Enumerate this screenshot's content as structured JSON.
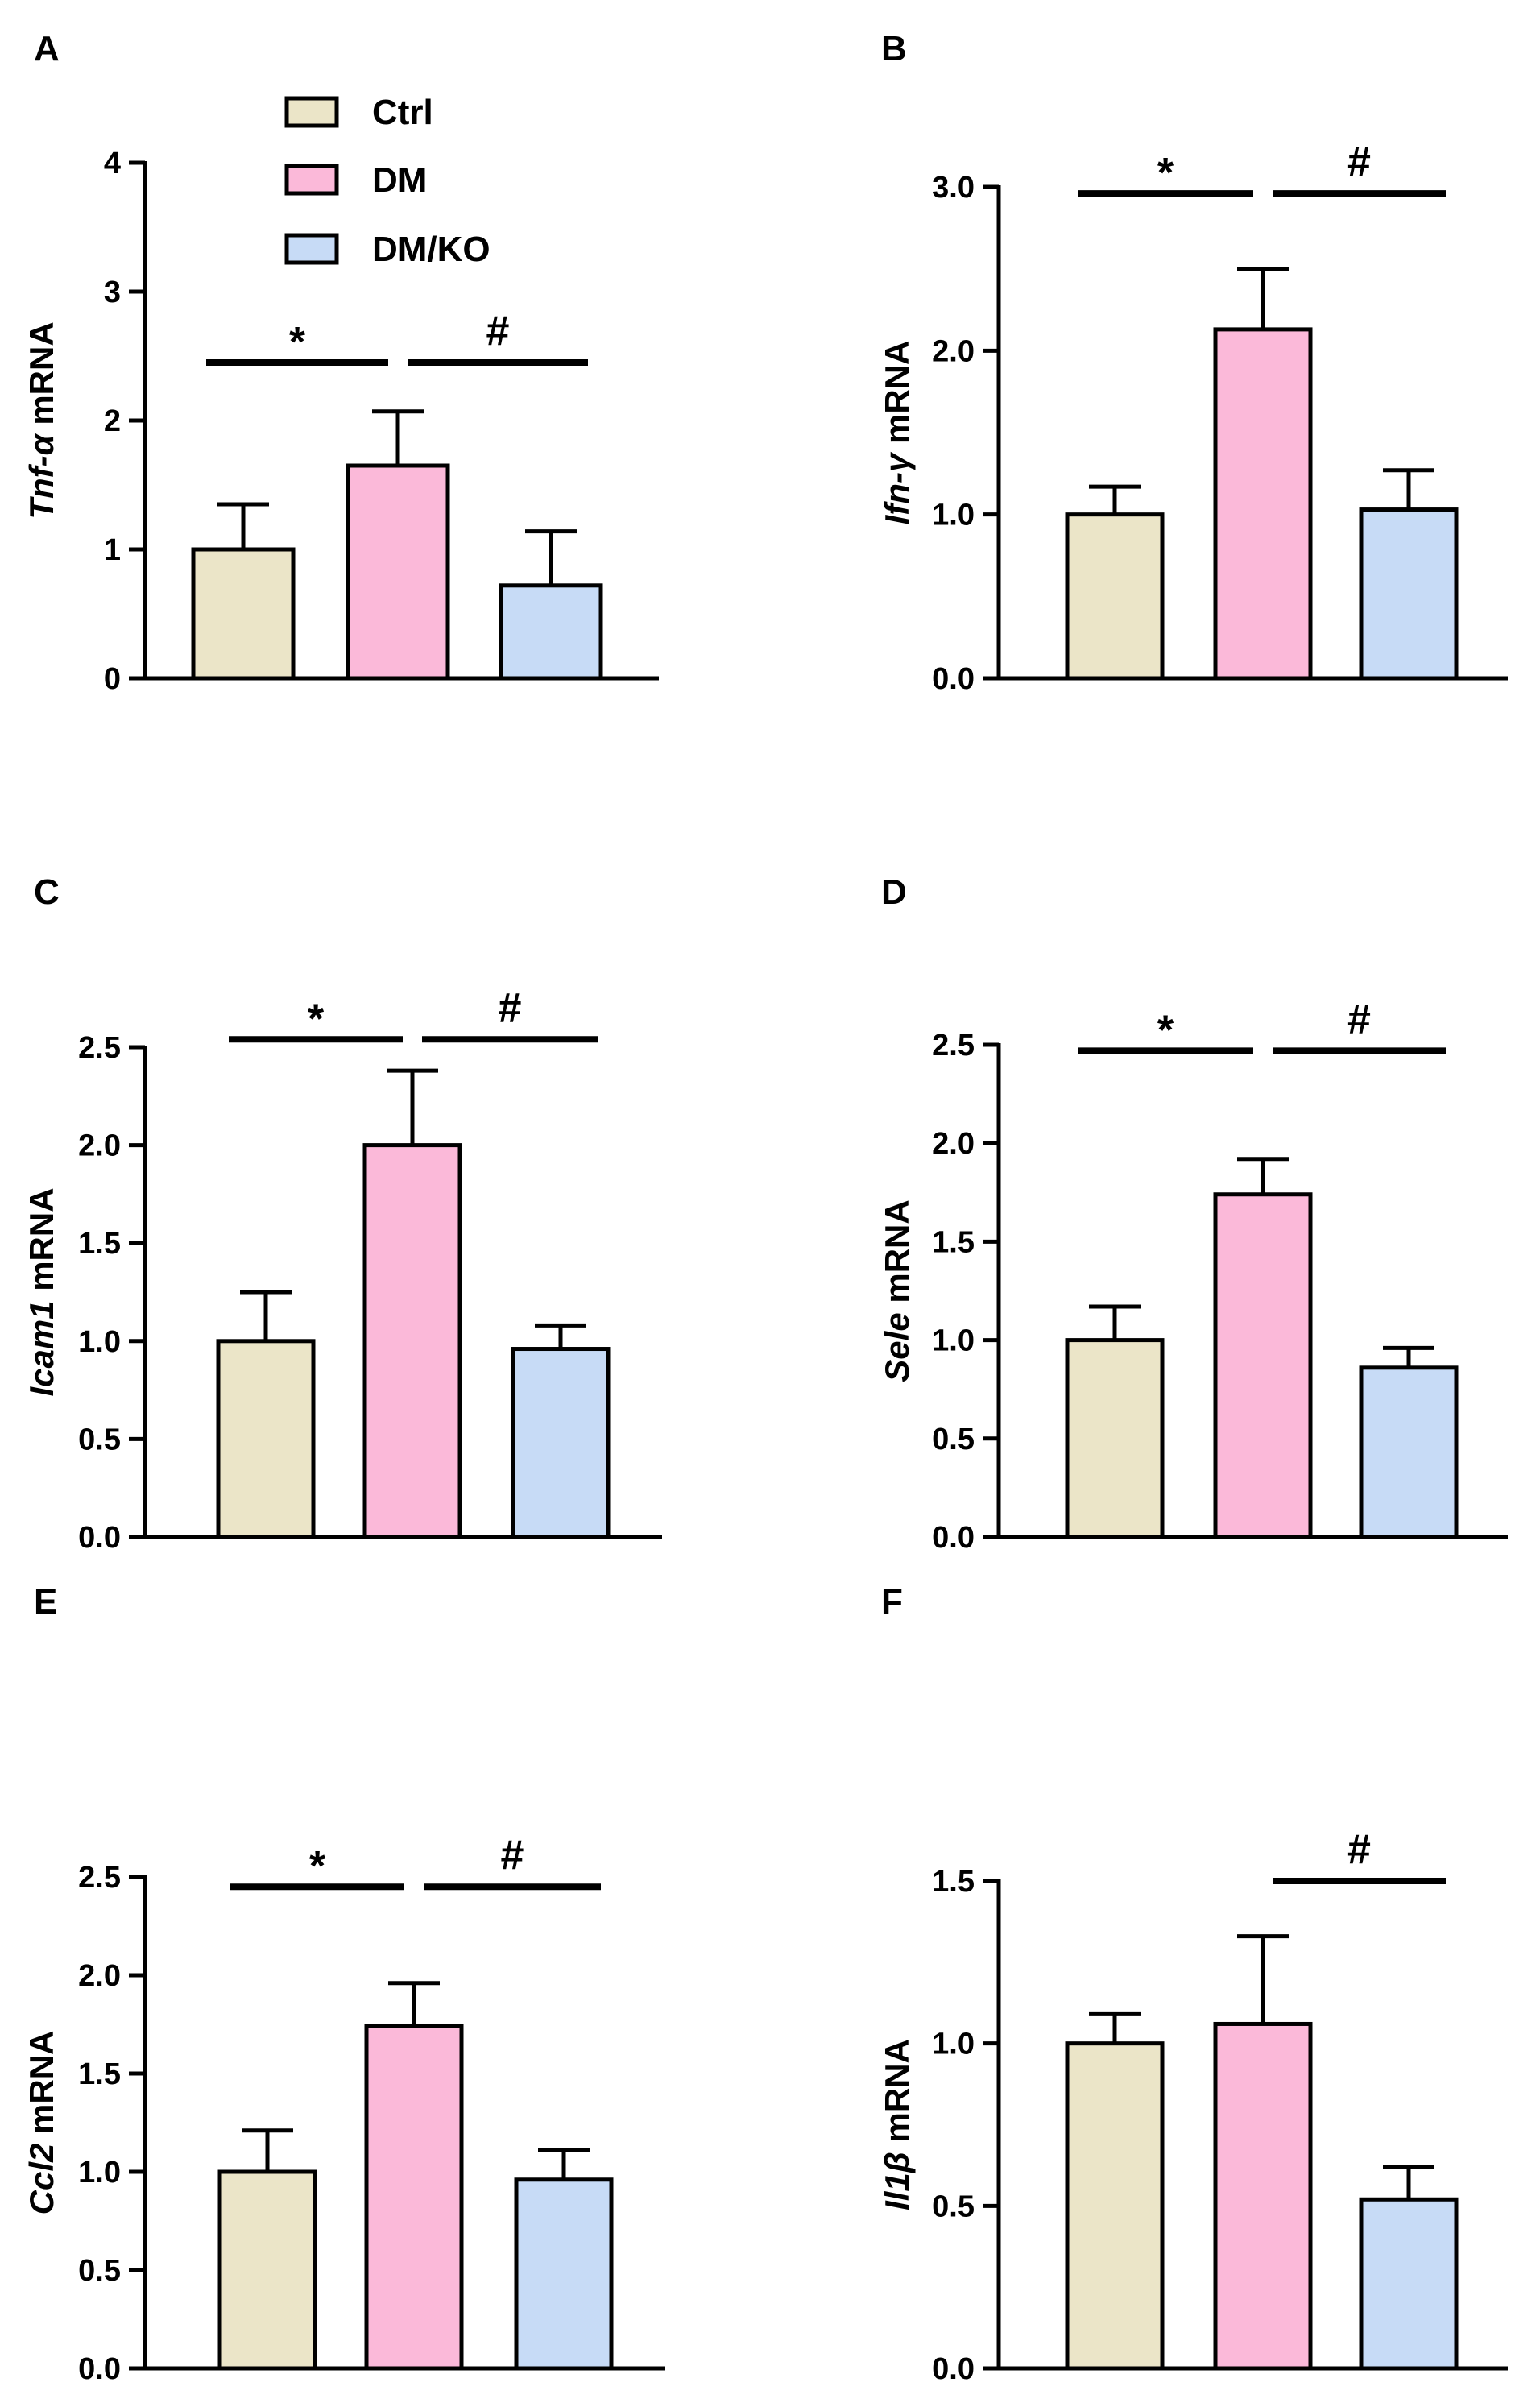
{
  "legend": [
    {
      "label": "Ctrl",
      "color": "#ebe5c8"
    },
    {
      "label": "DM",
      "color": "#fbb9d9"
    },
    {
      "label": "DM/KO",
      "color": "#c7dbf6"
    }
  ],
  "chart_data": [
    {
      "panel": "A",
      "type": "bar",
      "ylabel_gene": "Tnf-α",
      "ylabel_suffix": " mRNA",
      "categories": [
        "Ctrl",
        "DM",
        "DM/KO"
      ],
      "values": [
        1.0,
        1.65,
        0.72
      ],
      "errors": [
        0.35,
        0.42,
        0.42
      ],
      "ylim": [
        0,
        4
      ],
      "ticks": [
        0,
        1,
        2,
        3,
        4
      ],
      "tick_labels": [
        "0",
        "1",
        "2",
        "3",
        "4"
      ],
      "annotations": [
        {
          "text": "*",
          "from": 0,
          "to": 1,
          "y": 2.45
        },
        {
          "text": "#",
          "from": 1,
          "to": 2,
          "y": 2.45
        }
      ]
    },
    {
      "panel": "B",
      "type": "bar",
      "ylabel_gene": "Ifn-γ",
      "ylabel_suffix": " mRNA",
      "categories": [
        "Ctrl",
        "DM",
        "DM/KO"
      ],
      "values": [
        1.0,
        2.13,
        1.03
      ],
      "errors": [
        0.17,
        0.37,
        0.24
      ],
      "ylim": [
        0,
        3.0
      ],
      "ticks": [
        0,
        1,
        2,
        3
      ],
      "tick_labels": [
        "0.0",
        "1.0",
        "2.0",
        "3.0"
      ],
      "annotations": [
        {
          "text": "*",
          "from": 0,
          "to": 1,
          "y": 2.96
        },
        {
          "text": "#",
          "from": 1,
          "to": 2,
          "y": 2.96
        }
      ]
    },
    {
      "panel": "C",
      "type": "bar",
      "ylabel_gene": "Icam1",
      "ylabel_suffix": " mRNA",
      "categories": [
        "Ctrl",
        "DM",
        "DM/KO"
      ],
      "values": [
        1.0,
        2.0,
        0.96
      ],
      "errors": [
        0.25,
        0.38,
        0.12
      ],
      "ylim": [
        0,
        2.5
      ],
      "ticks": [
        0,
        0.5,
        1,
        1.5,
        2,
        2.5
      ],
      "tick_labels": [
        "0.0",
        "0.5",
        "1.0",
        "1.5",
        "2.0",
        "2.5"
      ],
      "annotations": [
        {
          "text": "*",
          "from": 0,
          "to": 1,
          "y": 2.54
        },
        {
          "text": "#",
          "from": 1,
          "to": 2,
          "y": 2.54
        }
      ]
    },
    {
      "panel": "D",
      "type": "bar",
      "ylabel_gene": "Sele",
      "ylabel_suffix": " mRNA",
      "categories": [
        "Ctrl",
        "DM",
        "DM/KO"
      ],
      "values": [
        1.0,
        1.74,
        0.86
      ],
      "errors": [
        0.17,
        0.18,
        0.1
      ],
      "ylim": [
        0,
        2.5
      ],
      "ticks": [
        0,
        0.5,
        1,
        1.5,
        2,
        2.5
      ],
      "tick_labels": [
        "0.0",
        "0.5",
        "1.0",
        "1.5",
        "2.0",
        "2.5"
      ],
      "annotations": [
        {
          "text": "*",
          "from": 0,
          "to": 1,
          "y": 2.47
        },
        {
          "text": "#",
          "from": 1,
          "to": 2,
          "y": 2.47
        }
      ]
    },
    {
      "panel": "E",
      "type": "bar",
      "ylabel_gene": "Ccl2",
      "ylabel_suffix": " mRNA",
      "categories": [
        "Ctrl",
        "DM",
        "DM/KO"
      ],
      "values": [
        1.0,
        1.74,
        0.96
      ],
      "errors": [
        0.21,
        0.22,
        0.15
      ],
      "ylim": [
        0,
        2.5
      ],
      "ticks": [
        0,
        0.5,
        1,
        1.5,
        2,
        2.5
      ],
      "tick_labels": [
        "0.0",
        "0.5",
        "1.0",
        "1.5",
        "2.0",
        "2.5"
      ],
      "annotations": [
        {
          "text": "*",
          "from": 0,
          "to": 1,
          "y": 2.45
        },
        {
          "text": "#",
          "from": 1,
          "to": 2,
          "y": 2.45
        }
      ]
    },
    {
      "panel": "F",
      "type": "bar",
      "ylabel_gene": "Il1β",
      "ylabel_suffix": " mRNA",
      "categories": [
        "Ctrl",
        "DM",
        "DM/KO"
      ],
      "values": [
        1.0,
        1.06,
        0.52
      ],
      "errors": [
        0.09,
        0.27,
        0.1
      ],
      "ylim": [
        0,
        1.5
      ],
      "ticks": [
        0,
        0.5,
        1,
        1.5
      ],
      "tick_labels": [
        "0.0",
        "0.5",
        "1.0",
        "1.5"
      ],
      "annotations": [
        {
          "text": "#",
          "from": 1,
          "to": 2,
          "y": 1.5
        }
      ]
    }
  ]
}
